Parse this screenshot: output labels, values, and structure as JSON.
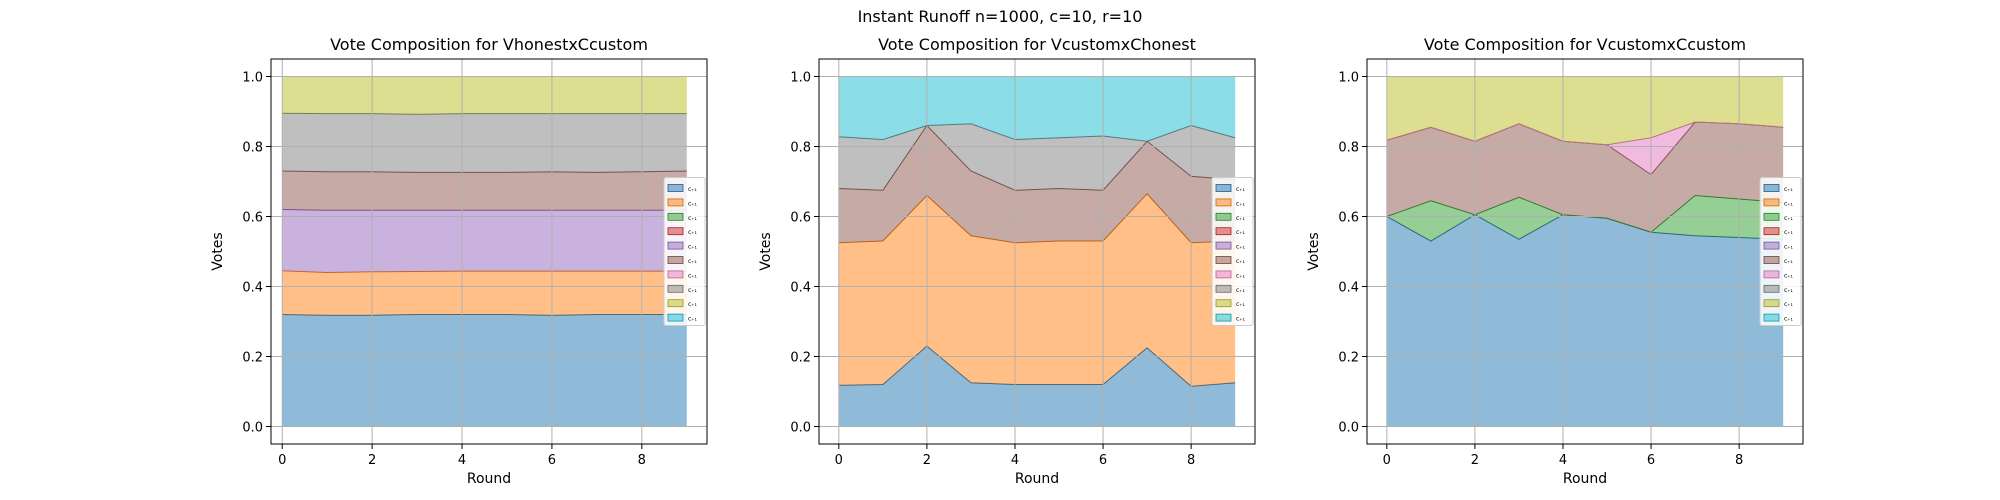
{
  "figure": {
    "suptitle": "Instant Runoff n=1000, c=10, r=10"
  },
  "colors": [
    "#1f77b4",
    "#ff7f0e",
    "#2ca02c",
    "#d62728",
    "#9467bd",
    "#8c564b",
    "#e377c2",
    "#7f7f7f",
    "#bcbd22",
    "#17becf"
  ],
  "chart_data": [
    {
      "type": "area",
      "stacked": true,
      "title": "Vote Composition for VhonestxCcustom",
      "xlabel": "Round",
      "ylabel": "Votes",
      "xlim": [
        -0.25,
        9.45
      ],
      "ylim": [
        -0.05,
        1.05
      ],
      "xticks": [
        0,
        2,
        4,
        6,
        8
      ],
      "yticks": [
        0.0,
        0.2,
        0.4,
        0.6,
        0.8,
        1.0
      ],
      "grid": true,
      "legend_position": "center-right",
      "x": [
        0,
        1,
        2,
        3,
        4,
        5,
        6,
        7,
        8,
        9
      ],
      "series": [
        {
          "name": "c₊₁",
          "values": [
            0.32,
            0.318,
            0.318,
            0.32,
            0.32,
            0.32,
            0.318,
            0.32,
            0.32,
            0.32
          ]
        },
        {
          "name": "c₊₁",
          "values": [
            0.125,
            0.122,
            0.124,
            0.123,
            0.124,
            0.124,
            0.126,
            0.124,
            0.124,
            0.124
          ]
        },
        {
          "name": "c₊₁",
          "values": [
            0,
            0,
            0,
            0,
            0,
            0,
            0,
            0,
            0,
            0
          ]
        },
        {
          "name": "c₊₁",
          "values": [
            0,
            0,
            0,
            0,
            0,
            0,
            0,
            0,
            0,
            0
          ]
        },
        {
          "name": "c₊₁",
          "values": [
            0.175,
            0.178,
            0.176,
            0.175,
            0.174,
            0.174,
            0.174,
            0.174,
            0.174,
            0.174
          ]
        },
        {
          "name": "c₊₁",
          "values": [
            0.11,
            0.11,
            0.11,
            0.108,
            0.108,
            0.108,
            0.11,
            0.108,
            0.11,
            0.112
          ]
        },
        {
          "name": "c₊₁",
          "values": [
            0,
            0,
            0,
            0,
            0,
            0,
            0,
            0,
            0,
            0
          ]
        },
        {
          "name": "c₊₁",
          "values": [
            0.165,
            0.166,
            0.166,
            0.166,
            0.168,
            0.168,
            0.166,
            0.168,
            0.166,
            0.164
          ]
        },
        {
          "name": "c₊₁",
          "values": [
            0.105,
            0.106,
            0.106,
            0.108,
            0.106,
            0.106,
            0.106,
            0.106,
            0.106,
            0.106
          ]
        }
      ]
    },
    {
      "type": "area",
      "stacked": true,
      "title": "Vote Composition for VcustomxChonest",
      "xlabel": "Round",
      "ylabel": "Votes",
      "xlim": [
        -0.45,
        9.45
      ],
      "ylim": [
        -0.05,
        1.05
      ],
      "xticks": [
        0,
        2,
        4,
        6,
        8
      ],
      "yticks": [
        0.0,
        0.2,
        0.4,
        0.6,
        0.8,
        1.0
      ],
      "grid": true,
      "legend_position": "center-right",
      "x": [
        0,
        1,
        2,
        3,
        4,
        5,
        6,
        7,
        8,
        9
      ],
      "series": [
        {
          "name": "c₊₁",
          "values": [
            0.118,
            0.12,
            0.23,
            0.125,
            0.12,
            0.12,
            0.12,
            0.225,
            0.115,
            0.125
          ]
        },
        {
          "name": "c₊₁",
          "values": [
            0.407,
            0.41,
            0.43,
            0.42,
            0.405,
            0.41,
            0.41,
            0.44,
            0.41,
            0.405
          ]
        },
        {
          "name": "c₊₁",
          "values": [
            0,
            0,
            0,
            0,
            0,
            0,
            0,
            0,
            0,
            0
          ]
        },
        {
          "name": "c₊₁",
          "values": [
            0,
            0,
            0,
            0,
            0,
            0,
            0,
            0,
            0,
            0
          ]
        },
        {
          "name": "c₊₁",
          "values": [
            0,
            0,
            0,
            0,
            0,
            0,
            0,
            0,
            0,
            0
          ]
        },
        {
          "name": "c₊₁",
          "values": [
            0.155,
            0.145,
            0.2,
            0.185,
            0.15,
            0.15,
            0.145,
            0.15,
            0.19,
            0.175
          ]
        },
        {
          "name": "c₊₁",
          "values": [
            0,
            0,
            0,
            0,
            0,
            0,
            0,
            0,
            0,
            0
          ]
        },
        {
          "name": "c₊₁",
          "values": [
            0.148,
            0.145,
            0,
            0.135,
            0.145,
            0.145,
            0.155,
            0,
            0.145,
            0.12
          ]
        },
        {
          "name": "c₊₁",
          "values": [
            0,
            0,
            0,
            0,
            0,
            0,
            0,
            0,
            0,
            0
          ]
        },
        {
          "name": "c₊₁",
          "values": [
            0.172,
            0.18,
            0.14,
            0.135,
            0.18,
            0.175,
            0.17,
            0.185,
            0.14,
            0.175
          ]
        }
      ]
    },
    {
      "type": "area",
      "stacked": true,
      "title": "Vote Composition for VcustomxCcustom",
      "xlabel": "Round",
      "ylabel": "Votes",
      "xlim": [
        -0.45,
        9.45
      ],
      "ylim": [
        -0.05,
        1.05
      ],
      "xticks": [
        0,
        2,
        4,
        6,
        8
      ],
      "yticks": [
        0.0,
        0.2,
        0.4,
        0.6,
        0.8,
        1.0
      ],
      "grid": true,
      "legend_position": "center-right",
      "x": [
        0,
        1,
        2,
        3,
        4,
        5,
        6,
        7,
        8,
        9
      ],
      "series": [
        {
          "name": "c₊₁",
          "values": [
            0.6,
            0.53,
            0.605,
            0.535,
            0.605,
            0.595,
            0.555,
            0.545,
            0.54,
            0.535
          ]
        },
        {
          "name": "c₊₁",
          "values": [
            0,
            0,
            0,
            0,
            0,
            0,
            0,
            0,
            0,
            0
          ]
        },
        {
          "name": "c₊₁",
          "values": [
            0,
            0.115,
            0,
            0.12,
            0,
            0,
            0,
            0.115,
            0.11,
            0.105
          ]
        },
        {
          "name": "c₊₁",
          "values": [
            0,
            0,
            0,
            0,
            0,
            0,
            0,
            0,
            0,
            0
          ]
        },
        {
          "name": "c₊₁",
          "values": [
            0,
            0,
            0,
            0,
            0,
            0,
            0,
            0,
            0,
            0
          ]
        },
        {
          "name": "c₊₁",
          "values": [
            0.218,
            0.21,
            0.21,
            0.21,
            0.21,
            0.21,
            0.165,
            0.21,
            0.215,
            0.215
          ]
        },
        {
          "name": "c₊₁",
          "values": [
            0,
            0,
            0,
            0,
            0,
            0,
            0.105,
            0,
            0,
            0
          ]
        },
        {
          "name": "c₊₁",
          "values": [
            0,
            0,
            0,
            0,
            0,
            0,
            0,
            0,
            0,
            0
          ]
        },
        {
          "name": "c₊₁",
          "values": [
            0.182,
            0.145,
            0.185,
            0.135,
            0.185,
            0.195,
            0.175,
            0.13,
            0.135,
            0.145
          ]
        }
      ]
    }
  ]
}
